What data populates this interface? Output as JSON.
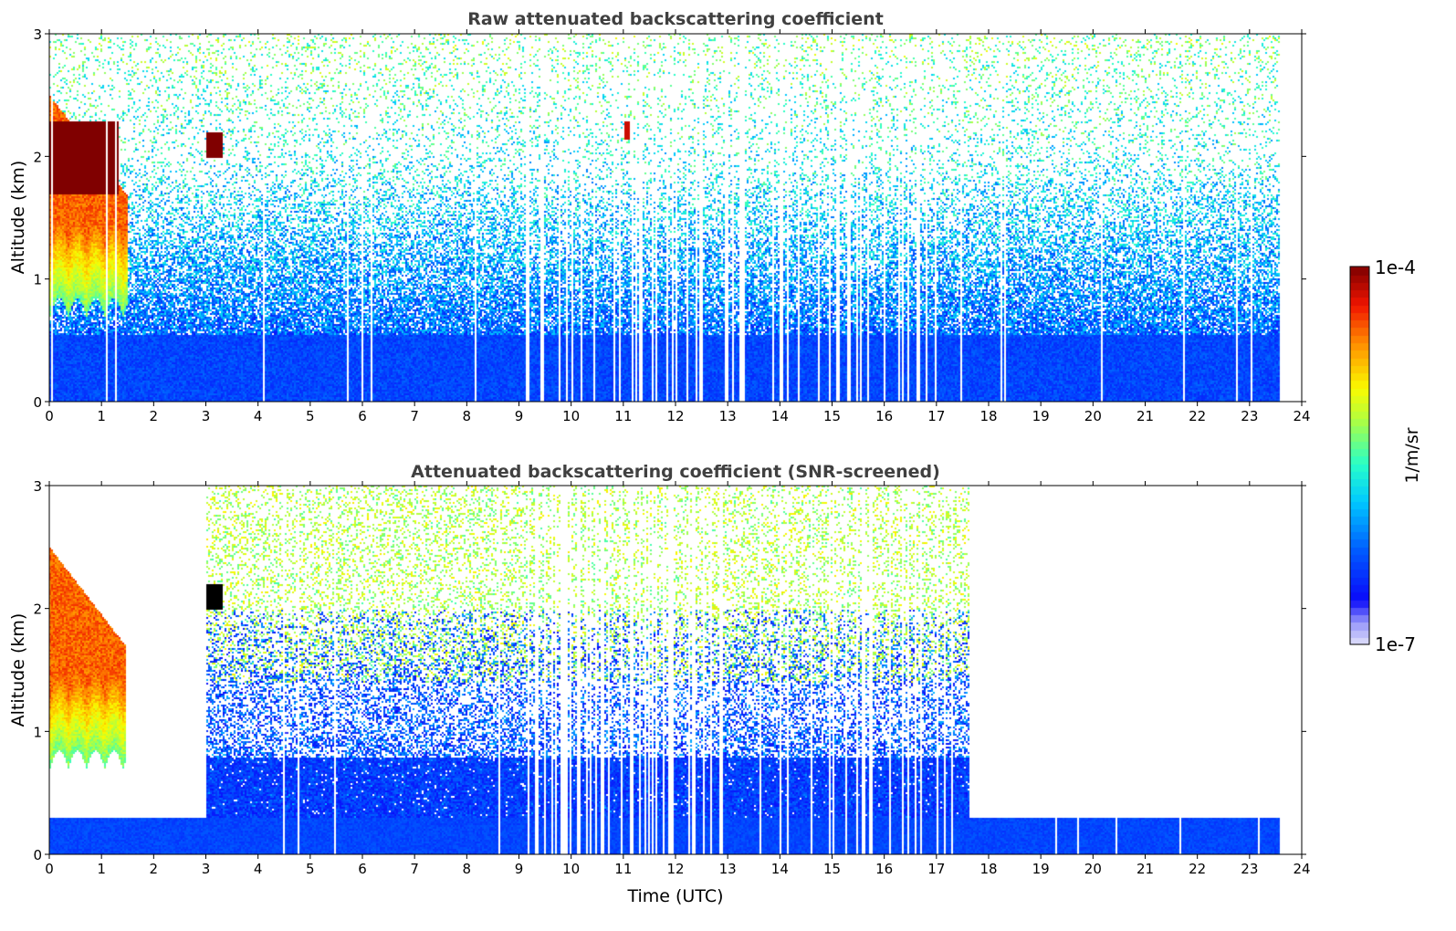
{
  "chart_data": [
    {
      "type": "heatmap",
      "title": "Raw attenuated backscattering coefficient",
      "xlabel": "",
      "ylabel": "Altitude (km)",
      "xlim": [
        0,
        24
      ],
      "ylim": [
        0,
        3
      ],
      "xticks": [
        "0",
        "1",
        "2",
        "3",
        "4",
        "5",
        "6",
        "7",
        "8",
        "9",
        "10",
        "11",
        "12",
        "13",
        "14",
        "15",
        "16",
        "17",
        "18",
        "19",
        "20",
        "21",
        "22",
        "23",
        "24"
      ],
      "yticks": [
        "0",
        "1",
        "2",
        "3"
      ],
      "data_end_time": 23.55,
      "features": [
        {
          "name": "cloud",
          "time": [
            0,
            1.5
          ],
          "altitude": [
            0.7,
            2.5
          ],
          "log10_value": -4.5
        },
        {
          "name": "cloud-top-layer",
          "time": [
            0,
            1.3
          ],
          "altitude": [
            1.7,
            2.3
          ],
          "log10_value": -4.0
        },
        {
          "name": "patch",
          "time": [
            3.0,
            3.3
          ],
          "altitude": [
            2.0,
            2.2
          ],
          "log10_value": -4.0
        },
        {
          "name": "patch",
          "time": [
            11.0,
            11.1
          ],
          "altitude": [
            2.15,
            2.3
          ],
          "log10_value": -4.2
        },
        {
          "name": "boundary-layer",
          "time": [
            0,
            23.55
          ],
          "altitude": [
            0,
            0.6
          ],
          "log10_value": -6.3
        }
      ]
    },
    {
      "type": "heatmap",
      "title": "Attenuated backscattering coefficient (SNR-screened)",
      "xlabel": "Time (UTC)",
      "ylabel": "Altitude (km)",
      "xlim": [
        0,
        24
      ],
      "ylim": [
        0,
        3
      ],
      "xticks": [
        "0",
        "1",
        "2",
        "3",
        "4",
        "5",
        "6",
        "7",
        "8",
        "9",
        "10",
        "11",
        "12",
        "13",
        "14",
        "15",
        "16",
        "17",
        "18",
        "19",
        "20",
        "21",
        "22",
        "23",
        "24"
      ],
      "yticks": [
        "0",
        "1",
        "2",
        "3"
      ],
      "data_end_time": 23.55,
      "features": [
        {
          "name": "cloud",
          "time": [
            0,
            1.45
          ],
          "altitude": [
            0.65,
            2.5
          ],
          "log10_value": -4.5
        },
        {
          "name": "patch",
          "time": [
            3.0,
            3.3
          ],
          "altitude": [
            2.0,
            2.2
          ],
          "log10_value": -4.0
        },
        {
          "name": "screened-aerosol",
          "time": [
            3.0,
            17.6
          ],
          "altitude": [
            0.3,
            2.0
          ],
          "log10_value": -6.2
        },
        {
          "name": "surface-layer",
          "time": [
            0,
            23.55
          ],
          "altitude": [
            0,
            0.3
          ],
          "log10_value": -6.3
        }
      ]
    }
  ],
  "colorbar": {
    "label": "1/m/sr",
    "max_label": "1e-4",
    "min_label": "1e-7",
    "range_log10": [
      -7,
      -4
    ],
    "colormap": "jet"
  }
}
